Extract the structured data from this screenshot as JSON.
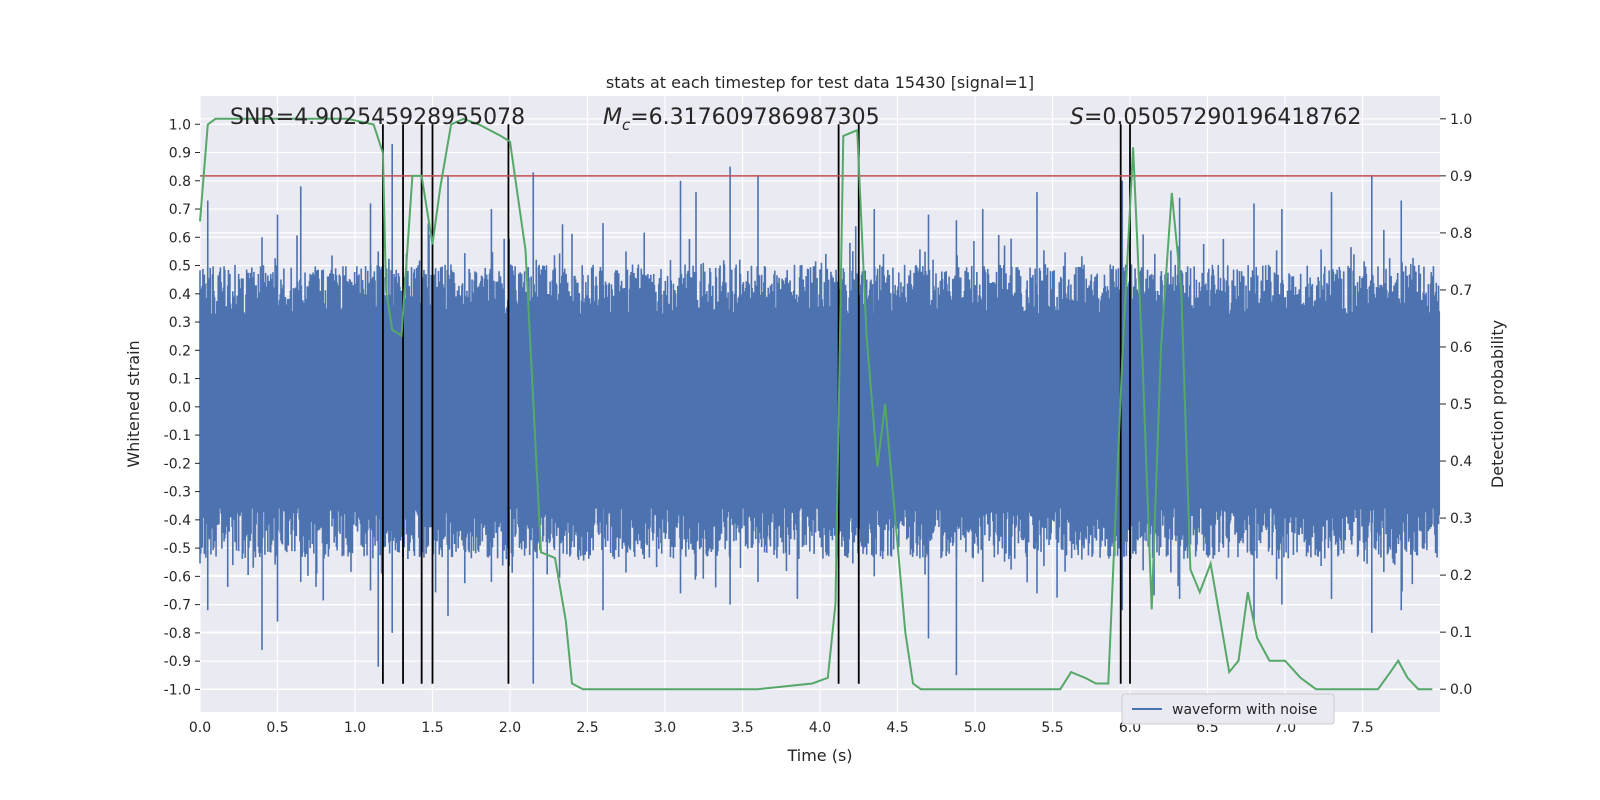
{
  "chart_data": {
    "type": "line",
    "title": "stats at each timestep for test data 15430 [signal=1]",
    "xlabel": "Time (s)",
    "ylabel": "Whitened strain",
    "ylabel_right": "Detection probability",
    "xlim": [
      0.0,
      8.0
    ],
    "ylim": [
      -1.08,
      1.1
    ],
    "ylim_right": [
      -0.04,
      1.04
    ],
    "x_ticks": [
      "0.0",
      "0.5",
      "1.0",
      "1.5",
      "2.0",
      "2.5",
      "3.0",
      "3.5",
      "4.0",
      "4.5",
      "5.0",
      "5.5",
      "6.0",
      "6.5",
      "7.0",
      "7.5"
    ],
    "y_ticks": [
      "1.0",
      "0.9",
      "0.8",
      "0.7",
      "0.6",
      "0.5",
      "0.4",
      "0.3",
      "0.2",
      "0.1",
      "0.0",
      "-0.1",
      "-0.2",
      "-0.3",
      "-0.4",
      "-0.5",
      "-0.6",
      "-0.7",
      "-0.8",
      "-0.9",
      "-1.0"
    ],
    "y_right_ticks": [
      "1.0",
      "0.9",
      "0.8",
      "0.7",
      "0.6",
      "0.5",
      "0.4",
      "0.3",
      "0.2",
      "0.1",
      "0.0"
    ],
    "annotations": {
      "snr": "SNR=4.902545928955078",
      "mc_symbol": "M",
      "mc_sub": "c",
      "mc_value": "=6.317609786987305",
      "s_symbol": "S",
      "s_value": "=0.05057290196418762"
    },
    "legend": {
      "label": "waveform with noise",
      "position": "lower-right"
    },
    "threshold": {
      "value": 0.9,
      "axis": "right",
      "color": "#c44e52"
    },
    "vlines": [
      1.18,
      1.31,
      1.43,
      1.5,
      1.99,
      4.12,
      4.25,
      5.94,
      6.0
    ],
    "series": [
      {
        "name": "waveform with noise",
        "axis": "left",
        "color": "#4c72b0",
        "duration": 8.0,
        "envelope_top": 0.42,
        "envelope_bottom": -0.45,
        "spikes": [
          [
            0.05,
            0.73,
            -0.72
          ],
          [
            0.4,
            0.6,
            -0.86
          ],
          [
            0.5,
            0.68,
            -0.76
          ],
          [
            0.65,
            0.78,
            -0.62
          ],
          [
            1.1,
            0.72,
            -0.65
          ],
          [
            1.15,
            0.55,
            -0.92
          ],
          [
            1.24,
            0.93,
            -0.8
          ],
          [
            1.6,
            0.82,
            -0.74
          ],
          [
            1.88,
            0.7,
            -0.62
          ],
          [
            2.15,
            0.83,
            -0.98
          ],
          [
            2.6,
            0.65,
            -0.72
          ],
          [
            3.1,
            0.8,
            -0.66
          ],
          [
            3.2,
            0.76,
            -0.6
          ],
          [
            3.42,
            0.85,
            -0.7
          ],
          [
            3.6,
            0.82,
            -0.62
          ],
          [
            4.35,
            0.7,
            -0.6
          ],
          [
            4.7,
            0.68,
            -0.82
          ],
          [
            4.88,
            0.66,
            -0.95
          ],
          [
            5.05,
            0.7,
            -0.62
          ],
          [
            5.4,
            0.76,
            -0.66
          ],
          [
            5.95,
            0.8,
            -0.72
          ],
          [
            6.32,
            0.74,
            -0.68
          ],
          [
            6.8,
            0.72,
            -0.76
          ],
          [
            6.98,
            0.7,
            -0.7
          ],
          [
            7.3,
            0.76,
            -0.68
          ],
          [
            7.56,
            0.82,
            -0.8
          ],
          [
            7.75,
            0.73,
            -0.72
          ]
        ]
      },
      {
        "name": "detection probability",
        "axis": "right",
        "color": "#55a868",
        "points": [
          [
            0.0,
            0.82
          ],
          [
            0.05,
            0.99
          ],
          [
            0.1,
            1.0
          ],
          [
            0.95,
            1.0
          ],
          [
            1.12,
            0.99
          ],
          [
            1.18,
            0.94
          ],
          [
            1.2,
            0.7
          ],
          [
            1.24,
            0.63
          ],
          [
            1.3,
            0.62
          ],
          [
            1.37,
            0.9
          ],
          [
            1.43,
            0.9
          ],
          [
            1.5,
            0.78
          ],
          [
            1.55,
            0.88
          ],
          [
            1.62,
            0.99
          ],
          [
            1.7,
            1.0
          ],
          [
            1.8,
            0.99
          ],
          [
            1.87,
            0.98
          ],
          [
            1.94,
            0.97
          ],
          [
            2.0,
            0.96
          ],
          [
            2.1,
            0.77
          ],
          [
            2.2,
            0.24
          ],
          [
            2.29,
            0.23
          ],
          [
            2.36,
            0.12
          ],
          [
            2.4,
            0.01
          ],
          [
            2.47,
            0.0
          ],
          [
            2.55,
            0.0
          ],
          [
            2.62,
            0.0
          ],
          [
            2.8,
            0.0
          ],
          [
            3.5,
            0.0
          ],
          [
            3.6,
            0.0
          ],
          [
            3.95,
            0.01
          ],
          [
            4.05,
            0.02
          ],
          [
            4.1,
            0.15
          ],
          [
            4.15,
            0.97
          ],
          [
            4.24,
            0.98
          ],
          [
            4.3,
            0.62
          ],
          [
            4.37,
            0.39
          ],
          [
            4.42,
            0.5
          ],
          [
            4.55,
            0.1
          ],
          [
            4.6,
            0.01
          ],
          [
            4.65,
            0.0
          ],
          [
            5.0,
            0.0
          ],
          [
            5.55,
            0.0
          ],
          [
            5.62,
            0.03
          ],
          [
            5.71,
            0.02
          ],
          [
            5.78,
            0.01
          ],
          [
            5.86,
            0.01
          ],
          [
            5.95,
            0.58
          ],
          [
            6.02,
            0.95
          ],
          [
            6.08,
            0.58
          ],
          [
            6.14,
            0.14
          ],
          [
            6.2,
            0.6
          ],
          [
            6.27,
            0.87
          ],
          [
            6.33,
            0.7
          ],
          [
            6.39,
            0.21
          ],
          [
            6.45,
            0.17
          ],
          [
            6.52,
            0.22
          ],
          [
            6.59,
            0.11
          ],
          [
            6.64,
            0.03
          ],
          [
            6.7,
            0.05
          ],
          [
            6.76,
            0.17
          ],
          [
            6.82,
            0.09
          ],
          [
            6.9,
            0.05
          ],
          [
            7.0,
            0.05
          ],
          [
            7.1,
            0.02
          ],
          [
            7.2,
            0.0
          ],
          [
            7.4,
            0.0
          ],
          [
            7.6,
            0.0
          ],
          [
            7.68,
            0.03
          ],
          [
            7.73,
            0.05
          ],
          [
            7.79,
            0.02
          ],
          [
            7.86,
            0.0
          ],
          [
            7.95,
            0.0
          ]
        ]
      }
    ]
  }
}
